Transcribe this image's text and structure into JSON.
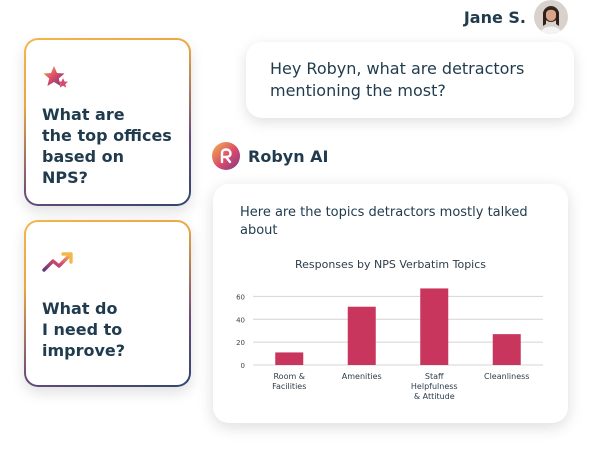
{
  "user": {
    "name": "Jane S."
  },
  "suggestions": [
    {
      "title": "What are\nthe top offices\nbased on NPS?",
      "icon": "star-icon"
    },
    {
      "title": "What do\nI need to\nimprove?",
      "icon": "trend-up-icon"
    }
  ],
  "user_message": "Hey Robyn, what are detractors\nmentioning the most?",
  "assistant": {
    "name": "Robyn AI",
    "message": "Here are the topics detractors mostly talked about"
  },
  "chart_data": {
    "type": "bar",
    "title": "Responses by NPS Verbatim Topics",
    "categories": [
      "Room & Facilities",
      "Amenities",
      "Staff Helpfulness & Attitude",
      "Cleanliness"
    ],
    "category_lines": [
      [
        "Room &",
        "Facilities"
      ],
      [
        "Amenities"
      ],
      [
        "Staff",
        "Helpfulness",
        "& Attitude"
      ],
      [
        "Cleanliness"
      ]
    ],
    "values": [
      11,
      51,
      67,
      27
    ],
    "yticks": [
      0,
      20,
      40,
      60
    ],
    "ylim": [
      0,
      70
    ],
    "grid": true,
    "color": "#c8365e"
  }
}
